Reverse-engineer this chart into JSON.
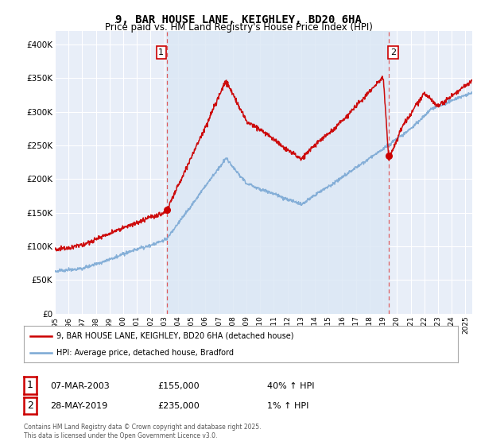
{
  "title": "9, BAR HOUSE LANE, KEIGHLEY, BD20 6HA",
  "subtitle": "Price paid vs. HM Land Registry's House Price Index (HPI)",
  "legend_line1": "9, BAR HOUSE LANE, KEIGHLEY, BD20 6HA (detached house)",
  "legend_line2": "HPI: Average price, detached house, Bradford",
  "footnote": "Contains HM Land Registry data © Crown copyright and database right 2025.\nThis data is licensed under the Open Government Licence v3.0.",
  "sale1_date": "07-MAR-2003",
  "sale1_price": "£155,000",
  "sale1_hpi": "40% ↑ HPI",
  "sale2_date": "28-MAY-2019",
  "sale2_price": "£235,000",
  "sale2_hpi": "1% ↑ HPI",
  "red_color": "#cc0000",
  "blue_color": "#7aa8d4",
  "vline_color": "#dd4444",
  "band_color": "#dce8f5",
  "background_color": "#e8eef8",
  "ylim": [
    0,
    420000
  ],
  "yticks": [
    0,
    50000,
    100000,
    150000,
    200000,
    250000,
    300000,
    350000,
    400000
  ],
  "sale1_year": 2003.17,
  "sale1_price_val": 155000,
  "sale2_year": 2019.4,
  "sale2_price_val": 235000
}
